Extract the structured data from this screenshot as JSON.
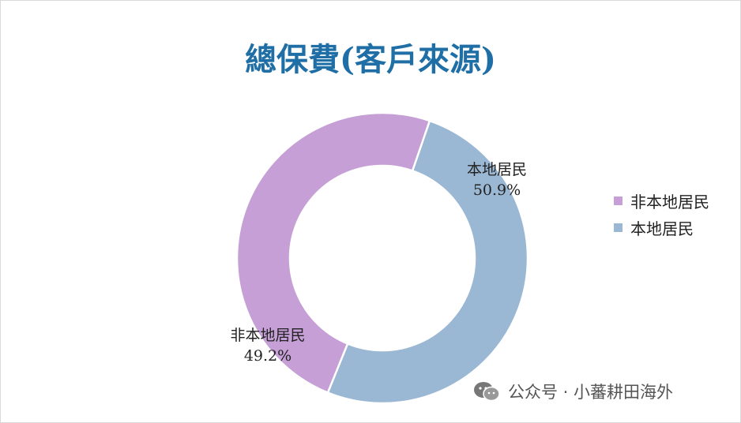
{
  "chart_data": {
    "type": "pie",
    "donut": true,
    "title": "總保費(客戶來源)",
    "slices": [
      {
        "label": "本地居民",
        "value": 50.9,
        "value_label": "50.9%",
        "color": "#9ab7d3"
      },
      {
        "label": "非本地居民",
        "value": 49.2,
        "value_label": "49.2%",
        "color": "#c59fd6"
      }
    ],
    "legend": {
      "placement": "right",
      "entries": [
        {
          "label": "非本地居民",
          "color": "#c59fd6"
        },
        {
          "label": "本地居民",
          "color": "#9ab7d3"
        }
      ]
    }
  },
  "watermark": {
    "icon": "wechat-icon",
    "text": "公众号 · 小蕃耕田海外"
  }
}
